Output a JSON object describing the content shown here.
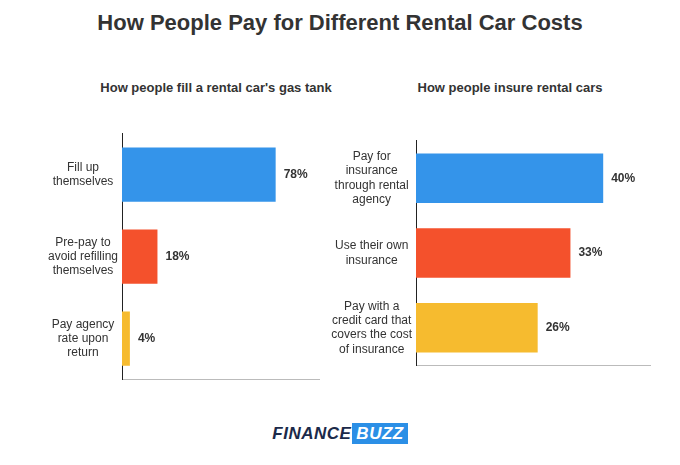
{
  "title": "How People Pay for Different Rental Car Costs",
  "logo": [
    "FINANCE",
    "BUZZ"
  ],
  "chart_data": [
    {
      "type": "bar",
      "orientation": "horizontal",
      "title": "How people fill a rental car's gas tank",
      "categories": [
        "Fill up themselves",
        "Pre-pay to avoid refilling themselves",
        "Pay agency rate upon return"
      ],
      "values": [
        78,
        18,
        4
      ],
      "value_labels": [
        "78%",
        "18%",
        "4%"
      ],
      "colors": [
        "#3494ea",
        "#f4512c",
        "#f6bb2f"
      ],
      "xlim": [
        0,
        100
      ],
      "grid": false,
      "data_labels": true,
      "tick_labels": "y"
    },
    {
      "type": "bar",
      "orientation": "horizontal",
      "title": "How people insure rental cars",
      "categories": [
        "Pay for insurance through rental agency",
        "Use their own insurance",
        "Pay with a credit card that covers the cost of insurance"
      ],
      "values": [
        40,
        33,
        26
      ],
      "value_labels": [
        "40%",
        "33%",
        "26%"
      ],
      "colors": [
        "#3494ea",
        "#f4512c",
        "#f6bb2f"
      ],
      "xlim": [
        0,
        50
      ],
      "grid": false,
      "data_labels": true,
      "tick_labels": "y"
    }
  ]
}
